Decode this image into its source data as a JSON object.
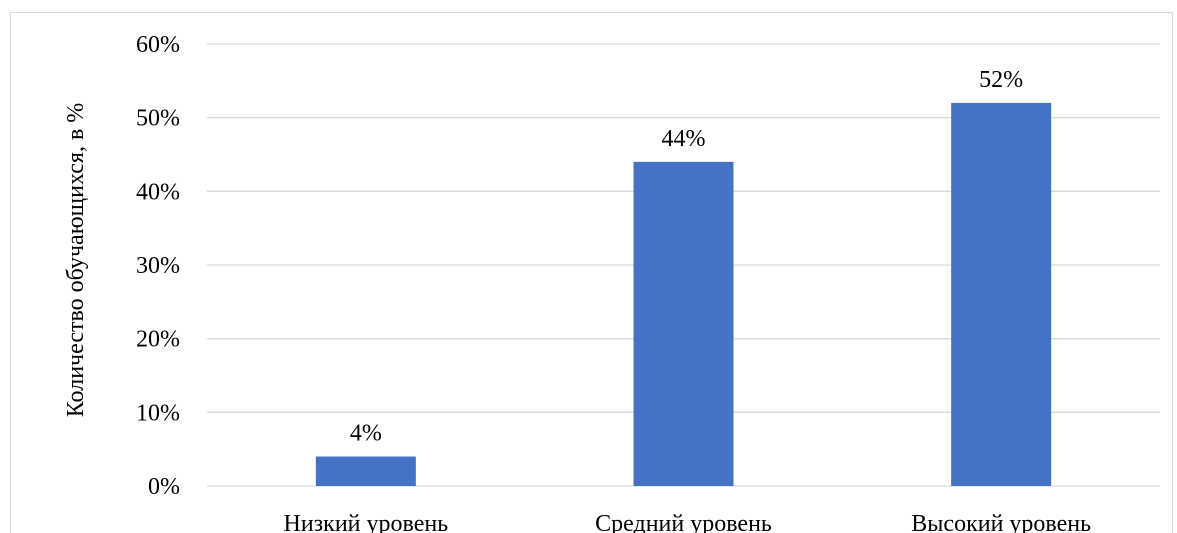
{
  "chart_data": {
    "type": "bar",
    "categories": [
      "Низкий уровень",
      "Средний уровень",
      "Высокий уровень"
    ],
    "values": [
      4,
      44,
      52
    ],
    "data_labels": [
      "4%",
      "44%",
      "52%"
    ],
    "ylabel": "Количество обучающихся, в %",
    "xlabel": "",
    "title": "",
    "ylim": [
      0,
      60
    ],
    "yticks": [
      "0%",
      "10%",
      "20%",
      "30%",
      "40%",
      "50%",
      "60%"
    ],
    "grid": true,
    "legend": "none",
    "bar_color": "#4472c4"
  }
}
